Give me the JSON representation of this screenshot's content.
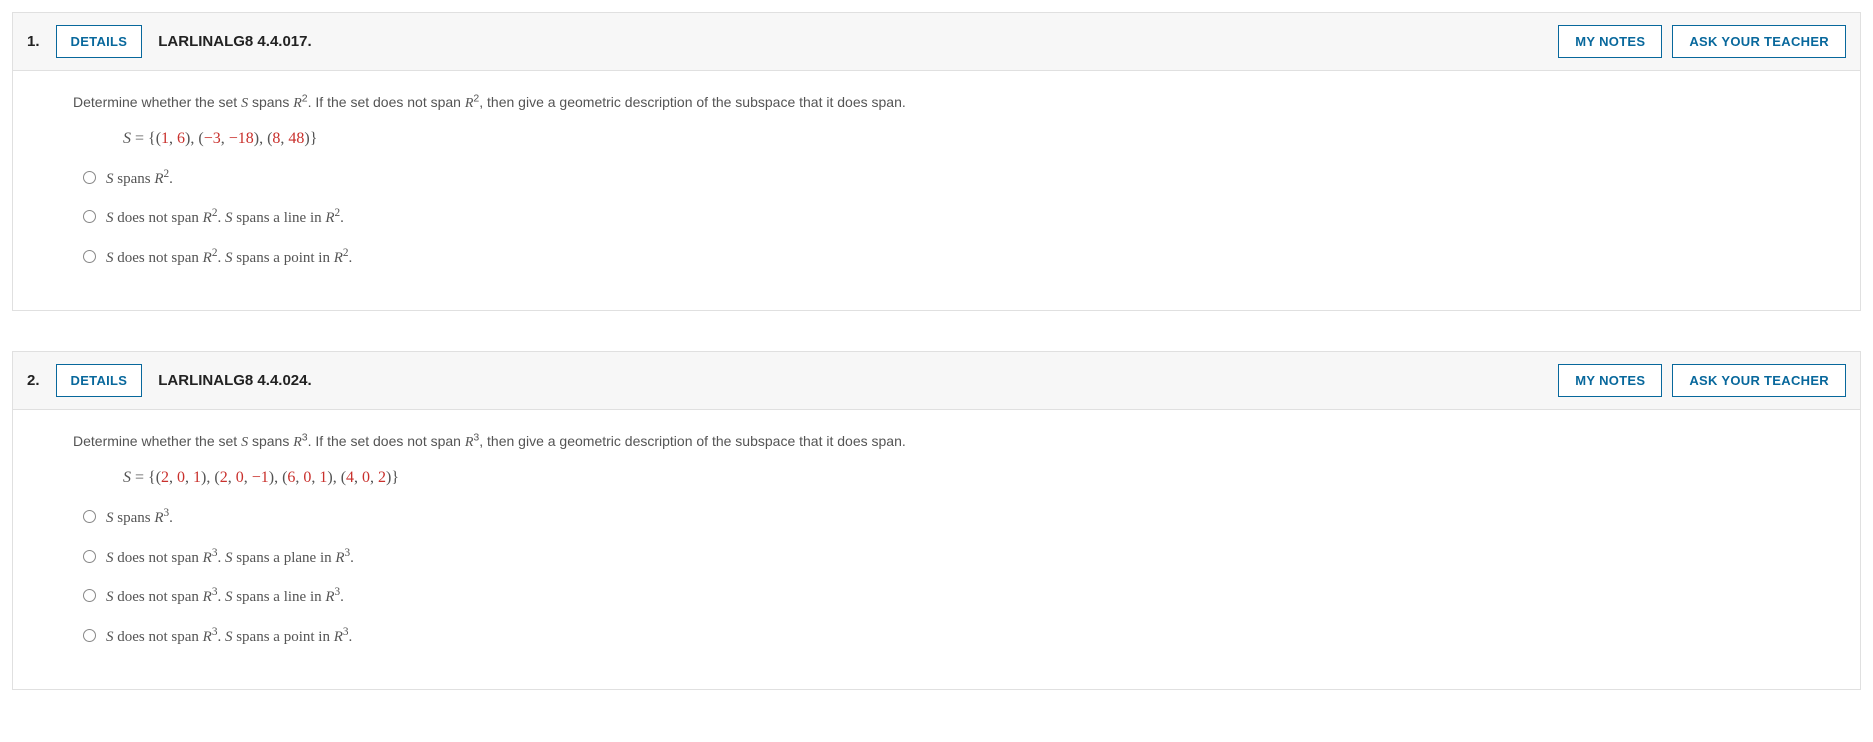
{
  "colors": {
    "accent": "#08689c",
    "border": "#e0e0e0",
    "header_bg": "#f7f7f7",
    "text": "#545454",
    "red": "#c9302c"
  },
  "buttons": {
    "details": "DETAILS",
    "my_notes": "MY NOTES",
    "ask_teacher": "ASK YOUR TEACHER"
  },
  "questions": [
    {
      "number": "1.",
      "code": "LARLINALG8 4.4.017.",
      "prompt_parts": {
        "pre": "Determine whether the set ",
        "set_var": "S",
        "mid1": " spans ",
        "space1": "R",
        "exp1": "2",
        "mid2": ". If the set does not span ",
        "space2": "R",
        "exp2": "2",
        "post": ", then give a geometric description of the subspace that it does span."
      },
      "set_def": {
        "lhs": "S",
        "eq": " = ",
        "vectors": [
          [
            "1",
            "6"
          ],
          [
            "−3",
            "−18"
          ],
          [
            "8",
            "48"
          ]
        ]
      },
      "choices": [
        {
          "parts": [
            {
              "t": "i",
              "v": "S"
            },
            {
              "t": "p",
              "v": " spans "
            },
            {
              "t": "i",
              "v": "R"
            },
            {
              "t": "sup",
              "v": "2"
            },
            {
              "t": "p",
              "v": "."
            }
          ]
        },
        {
          "parts": [
            {
              "t": "i",
              "v": "S"
            },
            {
              "t": "p",
              "v": " does not span "
            },
            {
              "t": "i",
              "v": "R"
            },
            {
              "t": "sup",
              "v": "2"
            },
            {
              "t": "p",
              "v": ". "
            },
            {
              "t": "i",
              "v": "S"
            },
            {
              "t": "p",
              "v": " spans a line in "
            },
            {
              "t": "i",
              "v": "R"
            },
            {
              "t": "sup",
              "v": "2"
            },
            {
              "t": "p",
              "v": "."
            }
          ]
        },
        {
          "parts": [
            {
              "t": "i",
              "v": "S"
            },
            {
              "t": "p",
              "v": " does not span "
            },
            {
              "t": "i",
              "v": "R"
            },
            {
              "t": "sup",
              "v": "2"
            },
            {
              "t": "p",
              "v": ". "
            },
            {
              "t": "i",
              "v": "S"
            },
            {
              "t": "p",
              "v": " spans a point in "
            },
            {
              "t": "i",
              "v": "R"
            },
            {
              "t": "sup",
              "v": "2"
            },
            {
              "t": "p",
              "v": "."
            }
          ]
        }
      ]
    },
    {
      "number": "2.",
      "code": "LARLINALG8 4.4.024.",
      "prompt_parts": {
        "pre": "Determine whether the set ",
        "set_var": "S",
        "mid1": " spans ",
        "space1": "R",
        "exp1": "3",
        "mid2": ". If the set does not span ",
        "space2": "R",
        "exp2": "3",
        "post": ", then give a geometric description of the subspace that it does span."
      },
      "set_def": {
        "lhs": "S",
        "eq": " = ",
        "vectors": [
          [
            "2",
            "0",
            "1"
          ],
          [
            "2",
            "0",
            "−1"
          ],
          [
            "6",
            "0",
            "1"
          ],
          [
            "4",
            "0",
            "2"
          ]
        ]
      },
      "choices": [
        {
          "parts": [
            {
              "t": "i",
              "v": "S"
            },
            {
              "t": "p",
              "v": " spans "
            },
            {
              "t": "i",
              "v": "R"
            },
            {
              "t": "sup",
              "v": "3"
            },
            {
              "t": "p",
              "v": "."
            }
          ]
        },
        {
          "parts": [
            {
              "t": "i",
              "v": "S"
            },
            {
              "t": "p",
              "v": " does not span "
            },
            {
              "t": "i",
              "v": "R"
            },
            {
              "t": "sup",
              "v": "3"
            },
            {
              "t": "p",
              "v": ". "
            },
            {
              "t": "i",
              "v": "S"
            },
            {
              "t": "p",
              "v": " spans a plane in "
            },
            {
              "t": "i",
              "v": "R"
            },
            {
              "t": "sup",
              "v": "3"
            },
            {
              "t": "p",
              "v": "."
            }
          ]
        },
        {
          "parts": [
            {
              "t": "i",
              "v": "S"
            },
            {
              "t": "p",
              "v": " does not span "
            },
            {
              "t": "i",
              "v": "R"
            },
            {
              "t": "sup",
              "v": "3"
            },
            {
              "t": "p",
              "v": ". "
            },
            {
              "t": "i",
              "v": "S"
            },
            {
              "t": "p",
              "v": " spans a line in "
            },
            {
              "t": "i",
              "v": "R"
            },
            {
              "t": "sup",
              "v": "3"
            },
            {
              "t": "p",
              "v": "."
            }
          ]
        },
        {
          "parts": [
            {
              "t": "i",
              "v": "S"
            },
            {
              "t": "p",
              "v": " does not span "
            },
            {
              "t": "i",
              "v": "R"
            },
            {
              "t": "sup",
              "v": "3"
            },
            {
              "t": "p",
              "v": ". "
            },
            {
              "t": "i",
              "v": "S"
            },
            {
              "t": "p",
              "v": " spans a point in "
            },
            {
              "t": "i",
              "v": "R"
            },
            {
              "t": "sup",
              "v": "3"
            },
            {
              "t": "p",
              "v": "."
            }
          ]
        }
      ]
    }
  ]
}
